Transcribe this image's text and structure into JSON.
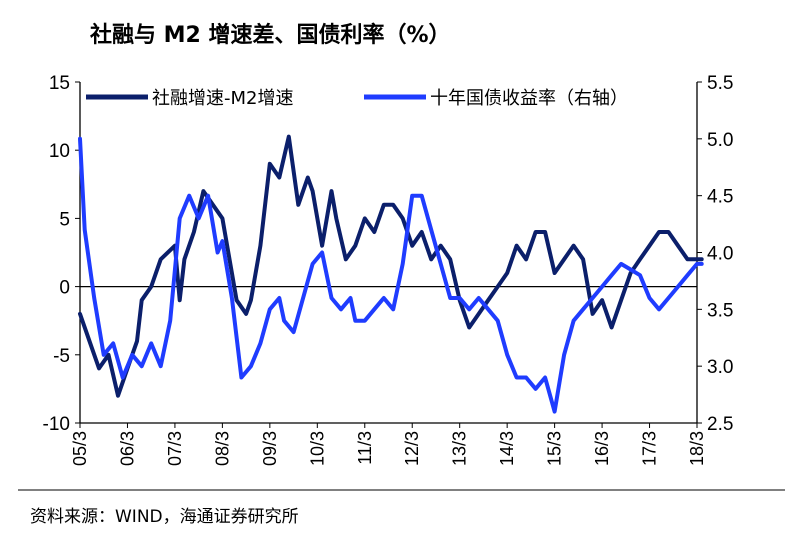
{
  "title": "社融与 M2 增速差、国债利率（%）",
  "source": "资料来源：WIND，海通证券研究所",
  "colors": {
    "series1": "#0b1f6b",
    "series2": "#1f3cff",
    "axis": "#000000"
  },
  "chart_data": {
    "type": "line",
    "title": "社融与 M2 增速差、国债利率（%）",
    "x_ticks": [
      "05/3",
      "06/3",
      "07/3",
      "08/3",
      "09/3",
      "10/3",
      "11/3",
      "12/3",
      "13/3",
      "14/3",
      "15/3",
      "16/3",
      "17/3",
      "18/3"
    ],
    "y_left": {
      "min": -10,
      "max": 15,
      "ticks": [
        "15",
        "10",
        "5",
        "0",
        "-5",
        "-10"
      ]
    },
    "y_right": {
      "min": 2.5,
      "max": 5.5,
      "ticks": [
        "5.5",
        "5.0",
        "4.5",
        "4.0",
        "3.5",
        "3.0",
        "2.5"
      ]
    },
    "grid": false,
    "legend_position": "top",
    "series": [
      {
        "name": "社融增速-M2增速",
        "axis": "left",
        "t": [
          0,
          0.2,
          0.4,
          0.6,
          0.8,
          1.0,
          1.2,
          1.3,
          1.5,
          1.7,
          2.0,
          2.1,
          2.2,
          2.4,
          2.6,
          2.8,
          3.0,
          3.2,
          3.3,
          3.5,
          3.6,
          3.8,
          4.0,
          4.2,
          4.4,
          4.6,
          4.8,
          4.9,
          5.1,
          5.3,
          5.4,
          5.6,
          5.8,
          6.0,
          6.2,
          6.4,
          6.6,
          6.8,
          7.0,
          7.2,
          7.4,
          7.6,
          7.8,
          8.0,
          8.2,
          8.4,
          8.6,
          8.8,
          9.0,
          9.2,
          9.4,
          9.6,
          9.8,
          10.0,
          10.2,
          10.4,
          10.6,
          10.8,
          11.0,
          11.2,
          11.4,
          11.6,
          11.8,
          12.0,
          12.2,
          12.4,
          12.6,
          12.8,
          13.0,
          13.1
        ],
        "values": [
          -2,
          -4,
          -6,
          -5,
          -8,
          -6,
          -4,
          -1,
          0,
          2,
          3,
          -1,
          2,
          4,
          7,
          6,
          5,
          1,
          -1,
          -2,
          -1,
          3,
          9,
          8,
          11,
          6,
          8,
          7,
          3,
          7,
          5,
          2,
          3,
          5,
          4,
          6,
          6,
          5,
          3,
          4,
          2,
          3,
          2,
          -1,
          -3,
          -2,
          -1,
          0,
          1,
          3,
          2,
          4,
          4,
          1,
          2,
          3,
          2,
          -2,
          -1,
          -3,
          -1,
          1,
          2,
          3,
          4,
          4,
          3,
          2,
          2,
          2
        ],
        "color": "#0b1f6b"
      },
      {
        "name": "十年国债收益率（右轴）",
        "axis": "right",
        "t": [
          0,
          0.1,
          0.3,
          0.5,
          0.7,
          0.9,
          1.0,
          1.1,
          1.3,
          1.5,
          1.7,
          1.9,
          2.1,
          2.3,
          2.5,
          2.7,
          2.9,
          3.0,
          3.2,
          3.4,
          3.6,
          3.8,
          4.0,
          4.2,
          4.3,
          4.5,
          4.7,
          4.9,
          5.1,
          5.3,
          5.5,
          5.7,
          5.8,
          6.0,
          6.2,
          6.4,
          6.6,
          6.8,
          7.0,
          7.2,
          7.4,
          7.6,
          7.8,
          8.0,
          8.2,
          8.4,
          8.6,
          8.8,
          9.0,
          9.2,
          9.4,
          9.6,
          9.8,
          10.0,
          10.2,
          10.4,
          10.6,
          10.8,
          11.0,
          11.2,
          11.4,
          11.6,
          11.8,
          12.0,
          12.2,
          12.4,
          12.6,
          12.8,
          13.0,
          13.1
        ],
        "values": [
          5.0,
          4.2,
          3.6,
          3.1,
          3.2,
          2.9,
          3.0,
          3.1,
          3.0,
          3.2,
          3.0,
          3.4,
          4.3,
          4.5,
          4.3,
          4.5,
          4.0,
          4.1,
          3.6,
          2.9,
          3.0,
          3.2,
          3.5,
          3.6,
          3.4,
          3.3,
          3.6,
          3.9,
          4.0,
          3.6,
          3.5,
          3.6,
          3.4,
          3.4,
          3.5,
          3.6,
          3.5,
          3.9,
          4.5,
          4.5,
          4.2,
          3.9,
          3.6,
          3.6,
          3.5,
          3.6,
          3.5,
          3.4,
          3.1,
          2.9,
          2.9,
          2.8,
          2.9,
          2.6,
          3.1,
          3.4,
          3.5,
          3.6,
          3.7,
          3.8,
          3.9,
          3.85,
          3.8,
          3.6,
          3.5,
          3.6,
          3.7,
          3.8,
          3.9,
          3.9
        ],
        "color": "#1f3cff"
      }
    ]
  }
}
